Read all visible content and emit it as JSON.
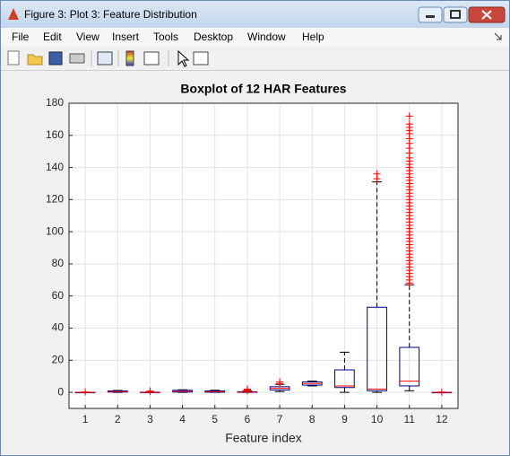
{
  "window": {
    "title": "Figure 3: Plot 3: Feature Distribution",
    "menu": [
      "File",
      "Edit",
      "View",
      "Insert",
      "Tools",
      "Desktop",
      "Window",
      "Help"
    ]
  },
  "chart_data": {
    "type": "boxplot",
    "title": "Boxplot of 12 HAR Features",
    "x_label": "Feature index",
    "categories": [
      "1",
      "2",
      "3",
      "4",
      "5",
      "6",
      "7",
      "8",
      "9",
      "10",
      "11",
      "12"
    ],
    "boxes": [
      {
        "whislo": 0,
        "q1": 0,
        "median": 0,
        "q3": 0,
        "whishi": 0,
        "fliers": [
          0.3
        ]
      },
      {
        "whislo": 0,
        "q1": 0.2,
        "median": 0.5,
        "q3": 0.9,
        "whishi": 1.2,
        "fliers": []
      },
      {
        "whislo": 0,
        "q1": 0,
        "median": 0,
        "q3": 0.1,
        "whishi": 0.2,
        "fliers": [
          0.5,
          0.8
        ]
      },
      {
        "whislo": 0,
        "q1": 0.2,
        "median": 0.6,
        "q3": 1.3,
        "whishi": 1.6,
        "fliers": []
      },
      {
        "whislo": 0,
        "q1": 0.1,
        "median": 0.4,
        "q3": 0.9,
        "whishi": 1.3,
        "fliers": []
      },
      {
        "whislo": 0,
        "q1": 0,
        "median": 0.1,
        "q3": 0.4,
        "whishi": 0.8,
        "fliers": [
          1,
          1.5,
          2
        ]
      },
      {
        "whislo": 0.5,
        "q1": 1.5,
        "median": 2.5,
        "q3": 3.5,
        "whishi": 5,
        "fliers": [
          5.5,
          6.5
        ]
      },
      {
        "whislo": 4,
        "q1": 4.5,
        "median": 5.5,
        "q3": 6.5,
        "whishi": 7,
        "fliers": []
      },
      {
        "whislo": 0,
        "q1": 3,
        "median": 4,
        "q3": 14,
        "whishi": 25,
        "fliers": []
      },
      {
        "whislo": 0,
        "q1": 1,
        "median": 2,
        "q3": 53,
        "whishi": 131,
        "fliers": [
          133,
          136
        ]
      },
      {
        "whislo": 1,
        "q1": 4,
        "median": 7,
        "q3": 28,
        "whishi": 67,
        "fliers": [
          68,
          70,
          72,
          74,
          76,
          78,
          80,
          82,
          84,
          86,
          88,
          90,
          92,
          94,
          96,
          98,
          100,
          102,
          104,
          106,
          108,
          110,
          112,
          114,
          116,
          118,
          120,
          122,
          124,
          126,
          128,
          130,
          132,
          134,
          136,
          138,
          140,
          142,
          144,
          146,
          149,
          152,
          155,
          158,
          161,
          163,
          165,
          167,
          172
        ]
      },
      {
        "whislo": 0,
        "q1": 0,
        "median": 0,
        "q3": 0,
        "whishi": 0,
        "fliers": [
          0.2
        ]
      }
    ],
    "box_color": "#00008b",
    "median_color": "#ff0000",
    "whisker_color": "#000000",
    "flier_color": "#ff0000",
    "ylim": [
      -10,
      180
    ],
    "yticks": [
      0,
      20,
      40,
      60,
      80,
      100,
      120,
      140,
      160,
      180
    ],
    "grid": true
  }
}
